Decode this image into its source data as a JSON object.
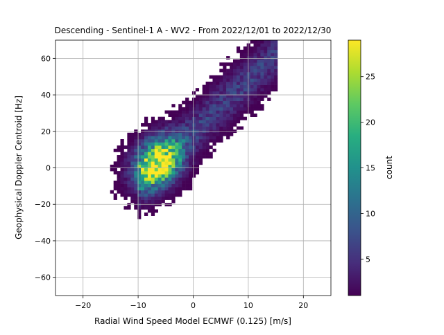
{
  "chart_data": {
    "type": "heatmap",
    "title": "Descending - Sentinel-1 A - WV2 - From 2022/12/01 to 2022/12/30",
    "xlabel": "Radial Wind Speed Model ECMWF (0.125) [m/s]",
    "ylabel": "Geophysical Doppler Centroid [Hz]",
    "xlim": [
      -25,
      25
    ],
    "ylim": [
      -70,
      70
    ],
    "x_ticks": [
      -20,
      -10,
      0,
      10,
      20
    ],
    "x_tick_labels": [
      "−20",
      "−10",
      "0",
      "10",
      "20"
    ],
    "y_ticks": [
      -60,
      -40,
      -20,
      0,
      20,
      40,
      60
    ],
    "y_tick_labels": [
      "−60",
      "−40",
      "−20",
      "0",
      "20",
      "40",
      "60"
    ],
    "grid": true,
    "colormap": "viridis",
    "colorbar": {
      "label": "count",
      "range": [
        1,
        29
      ],
      "ticks": [
        5,
        10,
        15,
        20,
        25
      ],
      "tick_labels": [
        "5",
        "10",
        "15",
        "20",
        "25"
      ]
    },
    "bin_size": {
      "x": 0.62,
      "y": 1.75
    },
    "density": {
      "core": {
        "x": -6.5,
        "y": 3,
        "sx": 2.8,
        "sy": 9,
        "corr": 0.25,
        "peak": 28
      },
      "trend_slope_hz_per_ms": 2.8,
      "trend_intercept_hz": 20,
      "trend_x_range": [
        -10,
        15
      ],
      "trend_peak": 6,
      "trend_width_hz": 9
    }
  }
}
